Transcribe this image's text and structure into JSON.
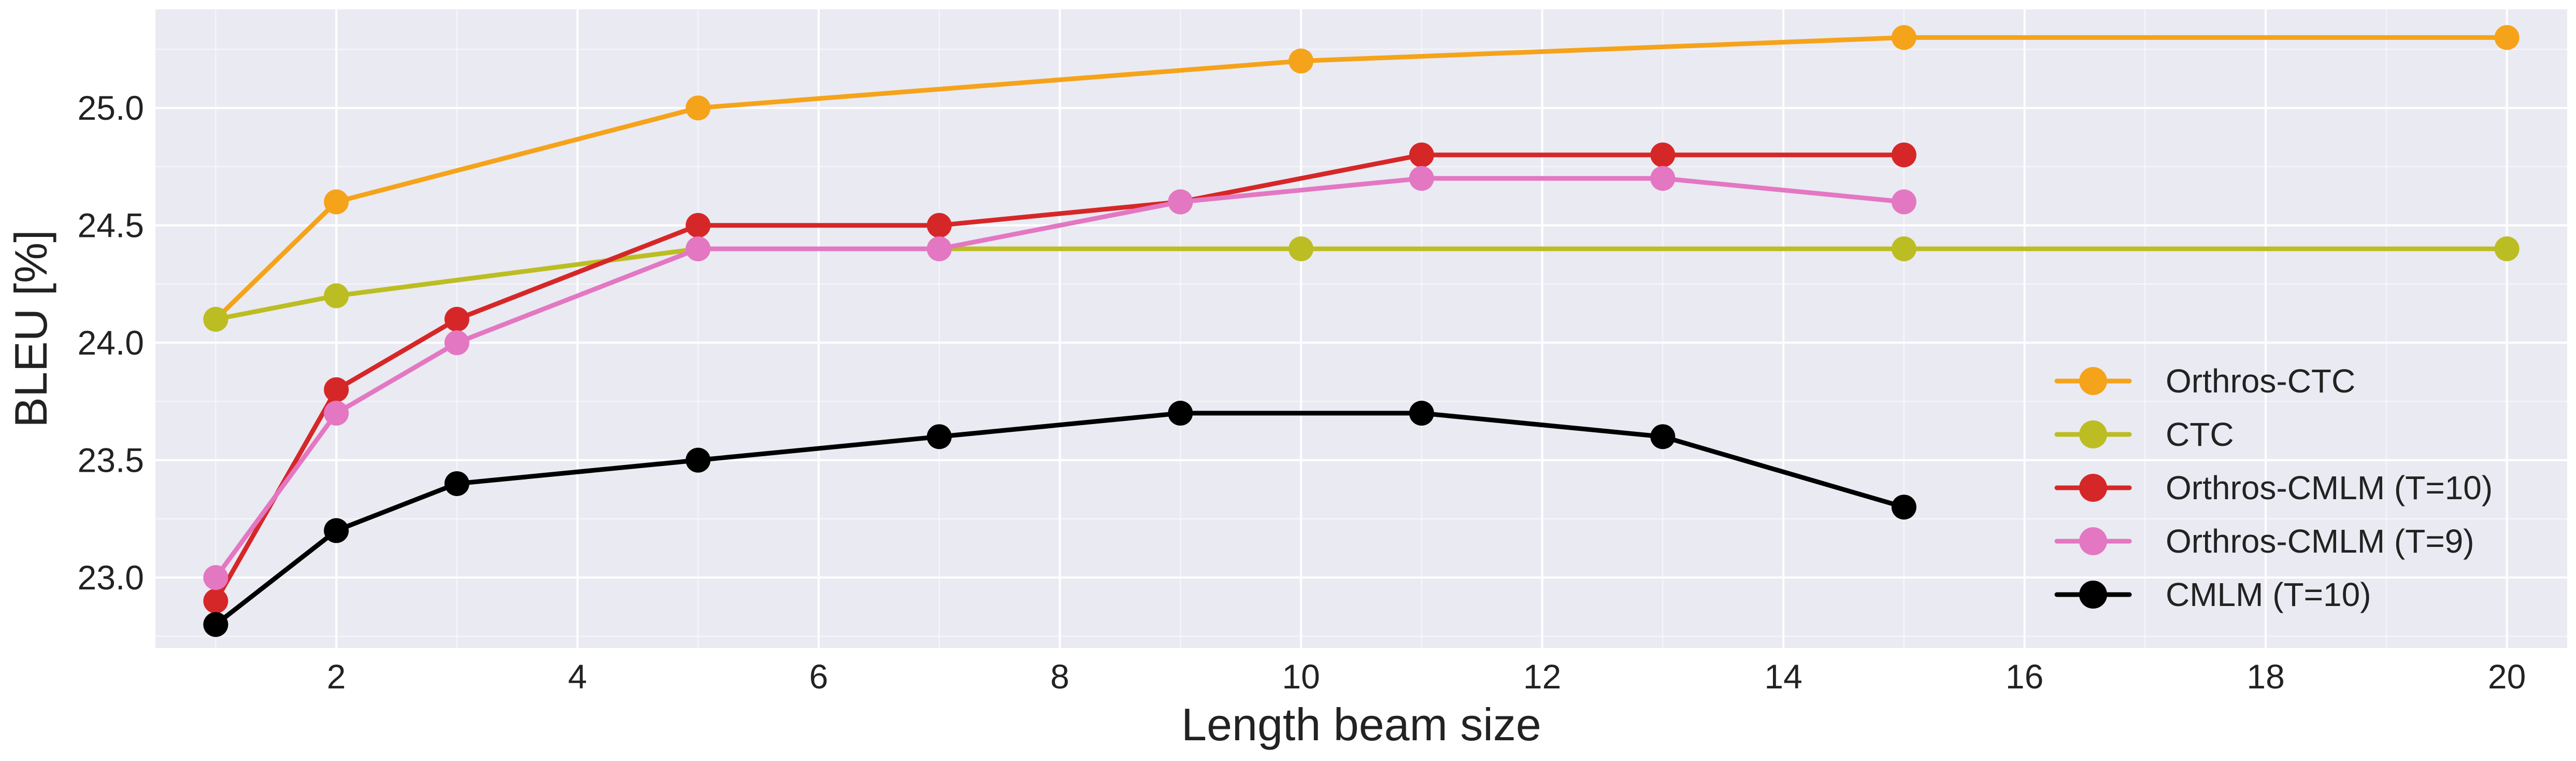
{
  "chart_data": {
    "type": "line",
    "title": "",
    "xlabel": "Length beam size",
    "ylabel": "BLEU [%]",
    "xlim": [
      0.5,
      20.5
    ],
    "ylim": [
      22.7,
      25.42
    ],
    "xticks": [
      2,
      4,
      6,
      8,
      10,
      12,
      14,
      16,
      18,
      20
    ],
    "xtick_labels": [
      "2",
      "4",
      "6",
      "8",
      "10",
      "12",
      "14",
      "16",
      "18",
      "20"
    ],
    "yticks": [
      23.0,
      23.5,
      24.0,
      24.5,
      25.0
    ],
    "ytick_labels": [
      "23.0",
      "23.5",
      "24.0",
      "24.5",
      "25.0"
    ],
    "grid": true,
    "legend_position": "lower-right",
    "series": [
      {
        "name": "Orthros-CTC",
        "color": "#f5a31a",
        "x": [
          1,
          2,
          5,
          10,
          15,
          20
        ],
        "y": [
          24.1,
          24.6,
          25.0,
          25.2,
          25.3,
          25.3
        ]
      },
      {
        "name": "CTC",
        "color": "#bcbd22",
        "x": [
          1,
          2,
          5,
          7,
          10,
          15,
          20
        ],
        "y": [
          24.1,
          24.2,
          24.4,
          24.4,
          24.4,
          24.4,
          24.4
        ]
      },
      {
        "name": "Orthros-CMLM (T=10)",
        "color": "#d62728",
        "x": [
          1,
          2,
          3,
          5,
          7,
          9,
          11,
          13,
          15
        ],
        "y": [
          22.9,
          23.8,
          24.1,
          24.5,
          24.5,
          24.6,
          24.8,
          24.8,
          24.8
        ]
      },
      {
        "name": "Orthros-CMLM (T=9)",
        "color": "#e377c2",
        "x": [
          1,
          2,
          3,
          5,
          7,
          9,
          11,
          13,
          15
        ],
        "y": [
          23.0,
          23.7,
          24.0,
          24.4,
          24.4,
          24.6,
          24.7,
          24.7,
          24.6
        ]
      },
      {
        "name": "CMLM (T=10)",
        "color": "#000000",
        "x": [
          1,
          2,
          3,
          5,
          7,
          9,
          11,
          13,
          15
        ],
        "y": [
          22.8,
          23.2,
          23.4,
          23.5,
          23.6,
          23.7,
          23.7,
          23.6,
          23.3
        ]
      }
    ],
    "colors": {
      "plot_background": "#eaeaf2",
      "grid": "#ffffff",
      "text": "#222222"
    }
  }
}
